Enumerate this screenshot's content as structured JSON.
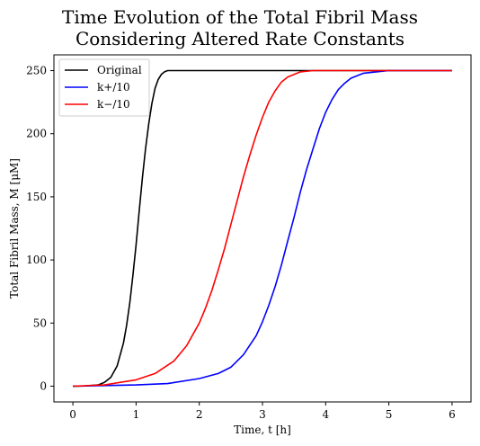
{
  "chart_data": {
    "type": "line",
    "title_line1": "Time Evolution of the Total Fibril Mass",
    "title_line2": "Considering Altered Rate Constants",
    "xlabel": "Time, t [h]",
    "ylabel": "Total Fibril Mass, M [μM]",
    "xlim": [
      -0.3,
      6.3
    ],
    "ylim": [
      -12.5,
      262.5
    ],
    "xticks": [
      0,
      1,
      2,
      3,
      4,
      5,
      6
    ],
    "yticks": [
      0,
      50,
      100,
      150,
      200,
      250
    ],
    "grid": false,
    "legend_position": "upper-left",
    "series": [
      {
        "name": "Original",
        "color": "#000000",
        "x": [
          0,
          0.2,
          0.4,
          0.5,
          0.6,
          0.7,
          0.8,
          0.85,
          0.9,
          0.95,
          1.0,
          1.05,
          1.1,
          1.15,
          1.2,
          1.25,
          1.3,
          1.35,
          1.4,
          1.45,
          1.5,
          1.6,
          2.0,
          3.0,
          4.0,
          5.0,
          6.0
        ],
        "y": [
          0,
          0.2,
          1,
          3,
          7,
          16,
          34,
          48,
          66,
          88,
          112,
          139,
          165,
          188,
          208,
          224,
          236,
          243,
          247,
          249,
          250,
          250,
          250,
          250,
          250,
          250,
          250
        ]
      },
      {
        "name": "k+/10",
        "color": "#0000ff",
        "x": [
          0,
          1.0,
          1.5,
          2.0,
          2.3,
          2.5,
          2.7,
          2.9,
          3.0,
          3.1,
          3.2,
          3.3,
          3.4,
          3.5,
          3.6,
          3.7,
          3.8,
          3.9,
          4.0,
          4.1,
          4.2,
          4.3,
          4.4,
          4.6,
          4.8,
          5.0,
          6.0
        ],
        "y": [
          0,
          1,
          2,
          6,
          10,
          15,
          25,
          40,
          51,
          64,
          79,
          96,
          115,
          134,
          154,
          172,
          188,
          204,
          217,
          227,
          235,
          240,
          244,
          248,
          249,
          250,
          250
        ]
      },
      {
        "name": "k−/10",
        "color": "#ff0000",
        "x": [
          0,
          0.5,
          1.0,
          1.3,
          1.6,
          1.8,
          2.0,
          2.1,
          2.2,
          2.3,
          2.4,
          2.5,
          2.6,
          2.7,
          2.8,
          2.9,
          3.0,
          3.1,
          3.2,
          3.3,
          3.4,
          3.6,
          3.8,
          4.0,
          5.0,
          6.0
        ],
        "y": [
          0,
          1,
          5,
          10,
          20,
          32,
          50,
          62,
          76,
          92,
          109,
          128,
          147,
          166,
          183,
          199,
          213,
          225,
          234,
          241,
          245,
          249,
          250,
          250,
          250,
          250
        ]
      }
    ],
    "legend": [
      {
        "label": "Original",
        "color": "#000000"
      },
      {
        "label": "k+/10",
        "color": "#0000ff"
      },
      {
        "label": "k−/10",
        "color": "#ff0000"
      }
    ]
  }
}
